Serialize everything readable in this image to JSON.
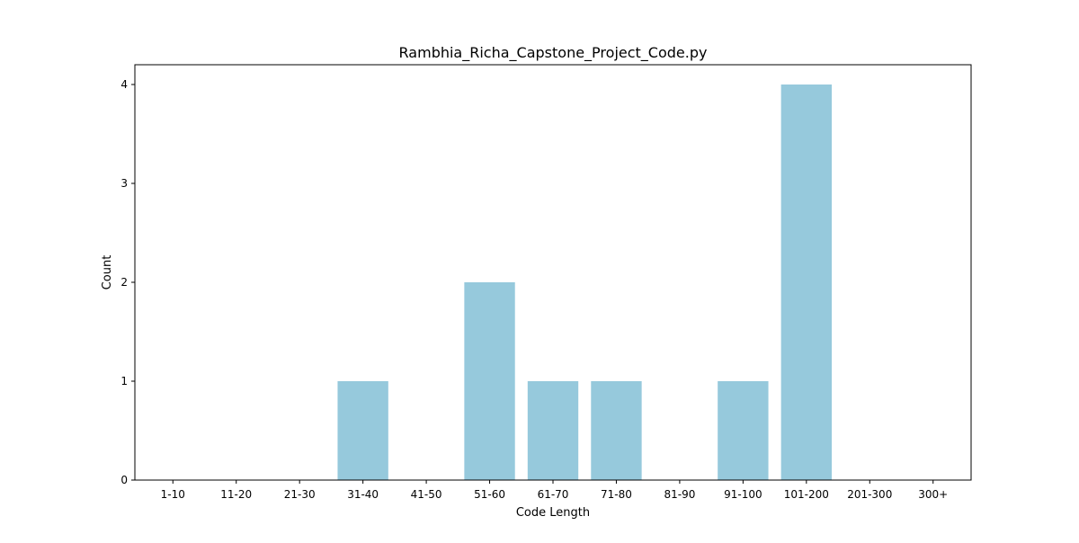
{
  "chart_data": {
    "type": "bar",
    "title": "Rambhia_Richa_Capstone_Project_Code.py",
    "xlabel": "Code Length",
    "ylabel": "Count",
    "categories": [
      "1-10",
      "11-20",
      "21-30",
      "31-40",
      "41-50",
      "51-60",
      "61-70",
      "71-80",
      "81-90",
      "91-100",
      "101-200",
      "201-300",
      "300+"
    ],
    "values": [
      0,
      0,
      0,
      1,
      0,
      2,
      1,
      1,
      0,
      1,
      4,
      0,
      0
    ],
    "ylim": [
      0,
      4.2
    ],
    "yticks": [
      0,
      1,
      2,
      3,
      4
    ],
    "grid": false,
    "bar_color": "#96c9dc"
  }
}
